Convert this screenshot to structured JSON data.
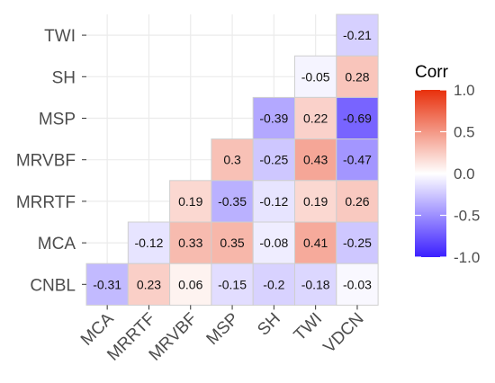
{
  "chart_data": {
    "type": "heatmap",
    "row_labels": [
      "TWI",
      "SH",
      "MSP",
      "MRVBF",
      "MRRTF",
      "MCA",
      "CNBL"
    ],
    "col_labels": [
      "MCA",
      "MRRTF",
      "MRVBF",
      "MSP",
      "SH",
      "TWI",
      "VDCN"
    ],
    "cells": [
      {
        "row": "TWI",
        "col": "VDCN",
        "value": -0.21,
        "label": "-0.21"
      },
      {
        "row": "SH",
        "col": "TWI",
        "value": -0.05,
        "label": "-0.05"
      },
      {
        "row": "SH",
        "col": "VDCN",
        "value": 0.28,
        "label": "0.28"
      },
      {
        "row": "MSP",
        "col": "SH",
        "value": -0.39,
        "label": "-0.39"
      },
      {
        "row": "MSP",
        "col": "TWI",
        "value": 0.22,
        "label": "0.22"
      },
      {
        "row": "MSP",
        "col": "VDCN",
        "value": -0.69,
        "label": "-0.69"
      },
      {
        "row": "MRVBF",
        "col": "MSP",
        "value": 0.3,
        "label": "0.3"
      },
      {
        "row": "MRVBF",
        "col": "SH",
        "value": -0.25,
        "label": "-0.25"
      },
      {
        "row": "MRVBF",
        "col": "TWI",
        "value": 0.43,
        "label": "0.43"
      },
      {
        "row": "MRVBF",
        "col": "VDCN",
        "value": -0.47,
        "label": "-0.47"
      },
      {
        "row": "MRRTF",
        "col": "MRVBF",
        "value": 0.19,
        "label": "0.19"
      },
      {
        "row": "MRRTF",
        "col": "MSP",
        "value": -0.35,
        "label": "-0.35"
      },
      {
        "row": "MRRTF",
        "col": "SH",
        "value": -0.12,
        "label": "-0.12"
      },
      {
        "row": "MRRTF",
        "col": "TWI",
        "value": 0.19,
        "label": "0.19"
      },
      {
        "row": "MRRTF",
        "col": "VDCN",
        "value": 0.26,
        "label": "0.26"
      },
      {
        "row": "MCA",
        "col": "MRRTF",
        "value": -0.12,
        "label": "-0.12"
      },
      {
        "row": "MCA",
        "col": "MRVBF",
        "value": 0.33,
        "label": "0.33"
      },
      {
        "row": "MCA",
        "col": "MSP",
        "value": 0.35,
        "label": "0.35"
      },
      {
        "row": "MCA",
        "col": "SH",
        "value": -0.08,
        "label": "-0.08"
      },
      {
        "row": "MCA",
        "col": "TWI",
        "value": 0.41,
        "label": "0.41"
      },
      {
        "row": "MCA",
        "col": "VDCN",
        "value": -0.25,
        "label": "-0.25"
      },
      {
        "row": "CNBL",
        "col": "MCA",
        "value": -0.31,
        "label": "-0.31"
      },
      {
        "row": "CNBL",
        "col": "MRRTF",
        "value": 0.23,
        "label": "0.23"
      },
      {
        "row": "CNBL",
        "col": "MRVBF",
        "value": 0.06,
        "label": "0.06"
      },
      {
        "row": "CNBL",
        "col": "MSP",
        "value": -0.15,
        "label": "-0.15"
      },
      {
        "row": "CNBL",
        "col": "SH",
        "value": -0.2,
        "label": "-0.2"
      },
      {
        "row": "CNBL",
        "col": "TWI",
        "value": -0.18,
        "label": "-0.18"
      },
      {
        "row": "CNBL",
        "col": "VDCN",
        "value": -0.03,
        "label": "-0.03"
      }
    ],
    "legend": {
      "title": "Corr",
      "ticks": [
        "1.0",
        "0.5",
        "0.0",
        "-0.5",
        "-1.0"
      ],
      "tick_values": [
        1.0,
        0.5,
        0.0,
        -0.5,
        -1.0
      ],
      "range": [
        -1.0,
        1.0
      ]
    },
    "colors": {
      "low": "#3b1fff",
      "mid": "#ffffff",
      "high": "#e8300c",
      "grid": "#ebebeb",
      "cell_border": "#cfcfcf",
      "axis_text": "#4d4d4d"
    },
    "grid": true,
    "x_tick_angle": "45",
    "legend_position": "right"
  }
}
